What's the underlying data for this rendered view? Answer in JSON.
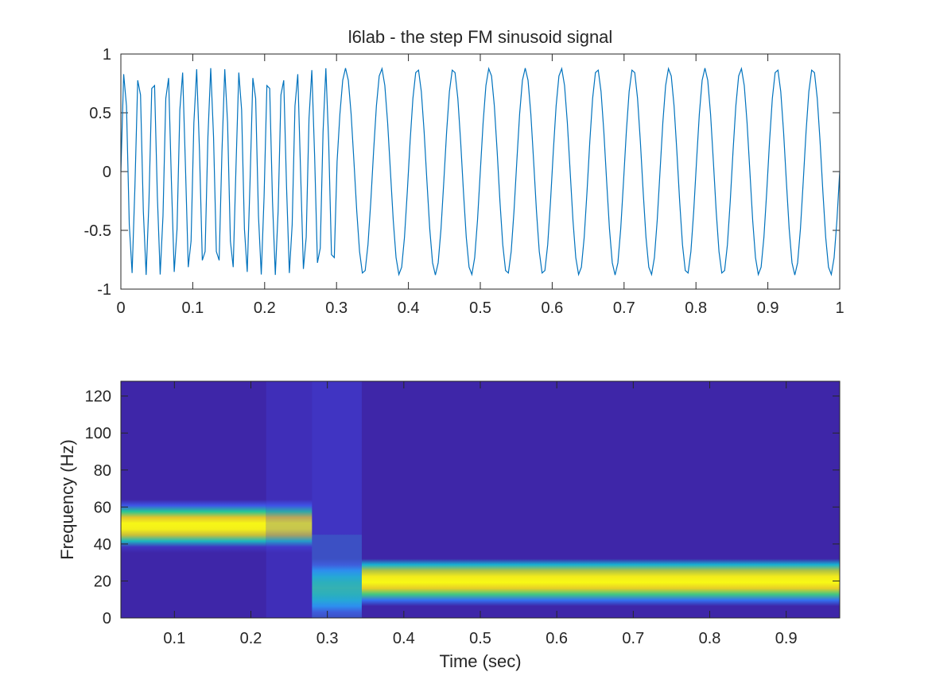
{
  "chart_data": [
    {
      "type": "line",
      "title": "l6lab - the step FM sinusoid signal",
      "xlabel": "",
      "ylabel": "",
      "xlim": [
        0,
        1
      ],
      "ylim": [
        -1,
        1
      ],
      "x_ticks": [
        "0",
        "0.1",
        "0.2",
        "0.3",
        "0.4",
        "0.5",
        "0.6",
        "0.7",
        "0.8",
        "0.9",
        "1"
      ],
      "y_ticks": [
        "1",
        "0.5",
        "0",
        "-0.5",
        "-1"
      ],
      "grid": false,
      "sample_rate_hz": 256,
      "series": [
        {
          "color": "#0072BD",
          "segments": [
            {
              "t_start": 0,
              "t_end": 0.3,
              "frequency_hz": 50,
              "amplitude": 0.88
            },
            {
              "t_start": 0.3,
              "t_end": 1,
              "frequency_hz": 20,
              "amplitude": 0.88
            }
          ]
        }
      ]
    },
    {
      "type": "heatmap",
      "title": "",
      "xlabel": "Time (sec)",
      "ylabel": "Frequency (Hz)",
      "xlim": [
        0.03,
        0.97
      ],
      "ylim": [
        0,
        128
      ],
      "x_ticks": [
        "0.1",
        "0.2",
        "0.3",
        "0.4",
        "0.5",
        "0.6",
        "0.7",
        "0.8",
        "0.9"
      ],
      "y_ticks": [
        "120",
        "100",
        "80",
        "60",
        "40",
        "20",
        "0"
      ],
      "grid": false,
      "colormap": "parula",
      "bands": [
        {
          "t_start": 0.03,
          "t_end": 0.22,
          "center_hz": 50,
          "halfwidth_hz": 12,
          "peak": 1.0
        },
        {
          "t_start": 0.22,
          "t_end": 0.28,
          "center_hz": 50,
          "halfwidth_hz": 12,
          "peak": 0.98
        },
        {
          "t_start": 0.28,
          "t_end": 0.345,
          "center_hz": 16,
          "halfwidth_hz": 14,
          "peak": 0.62
        },
        {
          "t_start": 0.345,
          "t_end": 0.97,
          "center_hz": 20,
          "halfwidth_hz": 12,
          "peak": 1.0
        }
      ],
      "colors": {
        "background": "#3E26A8",
        "transition_base": "#33B7F0",
        "transition_column": "#4249E8"
      }
    }
  ]
}
